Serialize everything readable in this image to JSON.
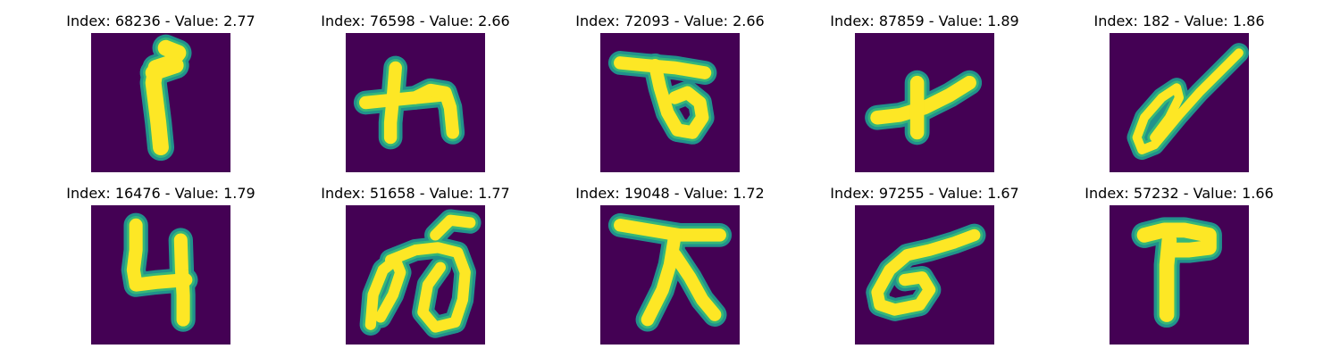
{
  "colors": {
    "background": "#440154",
    "mid": "#21918c",
    "teal_light": "#35b779",
    "yellow": "#fde725"
  },
  "panels": [
    {
      "title": "Index: 68236 - Value: 2.77"
    },
    {
      "title": "Index: 76598 - Value: 2.66"
    },
    {
      "title": "Index: 72093 - Value: 2.66"
    },
    {
      "title": "Index: 87859 - Value: 1.89"
    },
    {
      "title": "Index: 182 - Value: 1.86"
    },
    {
      "title": "Index: 16476 - Value: 1.79"
    },
    {
      "title": "Index: 51658 - Value: 1.77"
    },
    {
      "title": "Index: 19048 - Value: 1.72"
    },
    {
      "title": "Index: 97255 - Value: 1.67"
    },
    {
      "title": "Index: 57232 - Value: 1.66"
    }
  ]
}
